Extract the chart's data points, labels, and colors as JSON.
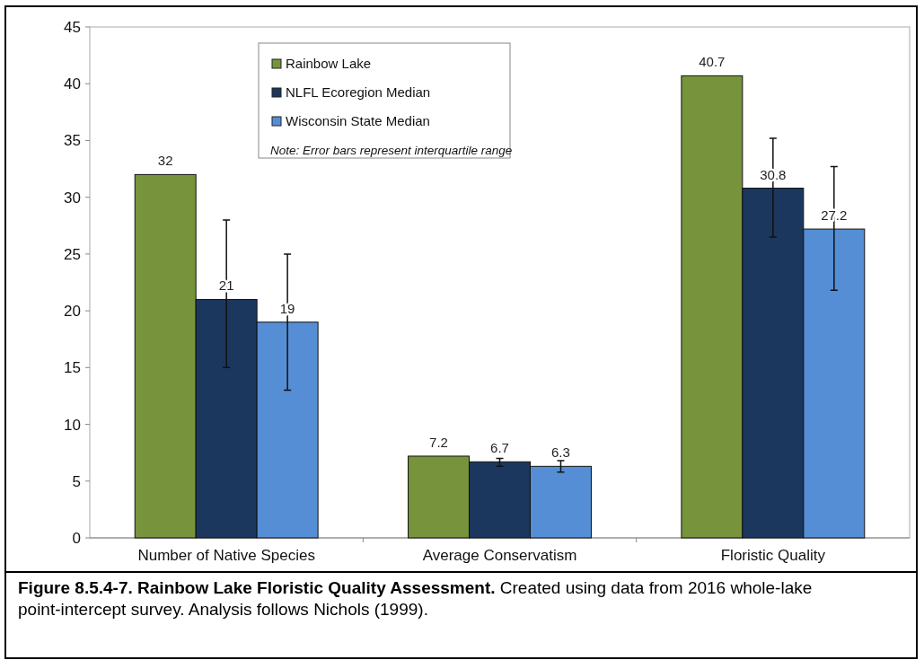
{
  "chart_data": {
    "type": "bar",
    "title": "Figure 8.5.4-7.  Rainbow Lake Floristic Quality Assessment.",
    "categories": [
      "Number of Native Species",
      "Average Conservatism",
      "Floristic Quality"
    ],
    "series": [
      {
        "name": "Rainbow Lake",
        "color": "#77933c",
        "values": [
          32,
          7.2,
          40.7
        ]
      },
      {
        "name": "NLFL Ecoregion Median",
        "color": "#1b375e",
        "values": [
          21,
          6.7,
          30.8
        ],
        "errors": [
          [
            15,
            28
          ],
          [
            6.3,
            7.0
          ],
          [
            26.5,
            35.2
          ]
        ]
      },
      {
        "name": "Wisconsin State Median",
        "color": "#558ed5",
        "values": [
          19,
          6.3,
          27.2
        ],
        "errors": [
          [
            13,
            25
          ],
          [
            5.8,
            6.8
          ],
          [
            21.8,
            32.7
          ]
        ]
      }
    ],
    "ylim": [
      0,
      45
    ],
    "yticks": [
      0,
      5,
      10,
      15,
      20,
      25,
      30,
      35,
      40,
      45
    ],
    "grid": false,
    "legend": "top left",
    "data_labels": true,
    "annotations": [
      "Note: Error bars represent interquartile range",
      "Created using data from 2016 whole-lake point-intercept survey.  Analysis follows Nichols (1999)."
    ]
  }
}
